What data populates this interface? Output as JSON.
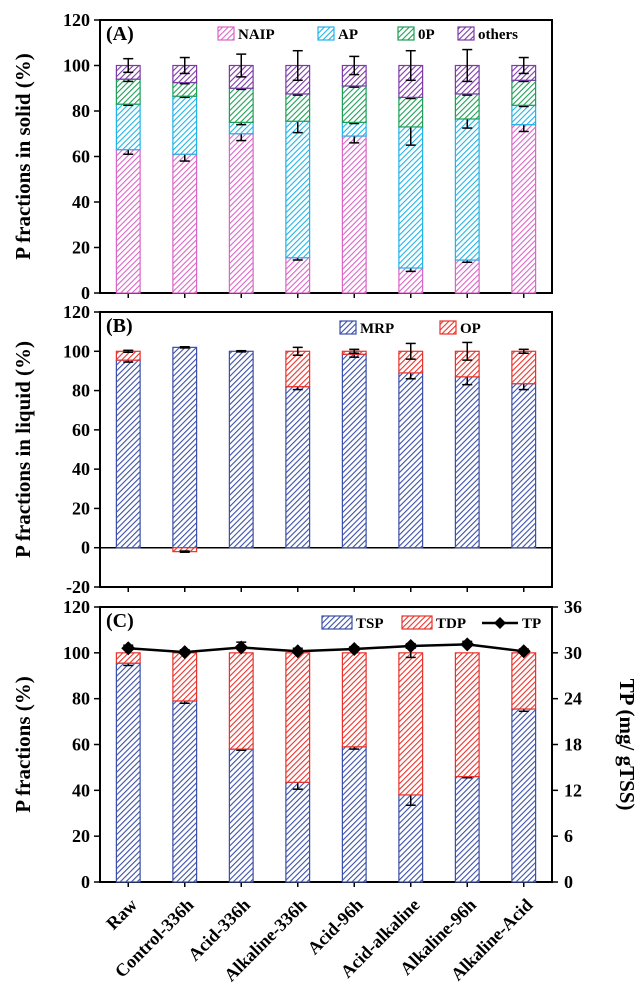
{
  "categories": [
    "Raw",
    "Control-336h",
    "Acid-336h",
    "Alkaline-336h",
    "Acid-96h",
    "Acid-alkaline",
    "Alkaline-96h",
    "Alkaline-Acid"
  ],
  "chart_data": [
    {
      "panel": "(A)",
      "type": "stacked-bar",
      "ylabel": "P fractions in solid (%)",
      "ylim": [
        0,
        120
      ],
      "yticks": [
        0,
        20,
        40,
        60,
        80,
        100,
        120
      ],
      "legend_position": "top",
      "series": [
        {
          "name": "NAIP",
          "color": "#d966c6",
          "values": [
            63,
            61,
            70,
            15.5,
            69,
            11,
            14.5,
            74
          ],
          "errors": [
            2,
            3,
            3,
            1,
            3,
            1.5,
            1,
            3
          ]
        },
        {
          "name": "AP",
          "color": "#22b3e6",
          "values": [
            20,
            25.5,
            5,
            60,
            6,
            62,
            62,
            8.5
          ],
          "errors": [
            0.5,
            0.5,
            1,
            5,
            0.5,
            8,
            4,
            0.5
          ]
        },
        {
          "name": "0P",
          "color": "#1e9e58",
          "values": [
            11,
            6,
            15,
            12,
            16,
            13,
            11,
            11
          ],
          "errors": [
            1,
            0.5,
            0.5,
            0.5,
            0.5,
            0.5,
            0.5,
            0.5
          ]
        },
        {
          "name": "others",
          "color": "#7b3aa8",
          "values": [
            6,
            7.5,
            10,
            12.5,
            9,
            14,
            12.5,
            6.5
          ],
          "errors": [
            3,
            3.5,
            5,
            6.5,
            4,
            6.5,
            7,
            3.5
          ]
        }
      ]
    },
    {
      "panel": "(B)",
      "type": "stacked-bar",
      "ylabel": "P fractions in liquid (%)",
      "ylim": [
        -20,
        120
      ],
      "yticks": [
        -20,
        0,
        20,
        40,
        60,
        80,
        100,
        120
      ],
      "legend_position": "top",
      "series": [
        {
          "name": "MRP",
          "color": "#3b4fa8",
          "values": [
            95.5,
            102,
            100,
            82,
            98.5,
            89,
            87,
            83.5
          ],
          "errors": [
            1,
            0.3,
            0.3,
            1.5,
            1.5,
            3,
            4,
            3
          ]
        },
        {
          "name": "OP",
          "color": "#e8322c",
          "values": [
            4.5,
            -2,
            0,
            18,
            1.5,
            11,
            13,
            16.5
          ],
          "errors": [
            0.5,
            0.3,
            0,
            2,
            1,
            4,
            4.5,
            1
          ]
        }
      ]
    },
    {
      "panel": "(C)",
      "type": "stacked-bar+line",
      "ylabel": "P fractions (%)",
      "y2label": "TP (mg/ gTSS)",
      "ylim": [
        0,
        120
      ],
      "yticks": [
        0,
        20,
        40,
        60,
        80,
        100,
        120
      ],
      "y2lim": [
        0,
        36
      ],
      "y2ticks": [
        0,
        6,
        12,
        18,
        24,
        30,
        36
      ],
      "legend_position": "top-right",
      "series": [
        {
          "name": "TSP",
          "color": "#3b4fa8",
          "values": [
            95.5,
            79,
            58,
            43.5,
            59,
            38,
            46,
            75.5
          ],
          "errors": [
            1,
            1,
            0.5,
            3,
            1,
            4.5,
            0.5,
            1
          ]
        },
        {
          "name": "TDP",
          "color": "#e8322c",
          "values": [
            4.5,
            21,
            42,
            56.5,
            41,
            62,
            54,
            24.5
          ],
          "errors": [
            0,
            0,
            0,
            0,
            0,
            2,
            0,
            0
          ]
        }
      ],
      "line": {
        "name": "TP",
        "color": "#000000",
        "values": [
          30.6,
          30.1,
          30.7,
          30.2,
          30.5,
          30.9,
          31.1,
          30.2
        ],
        "errors": [
          0.4,
          0.3,
          0.7,
          0.4,
          0.3,
          0.3,
          0.4,
          0.3
        ]
      }
    }
  ]
}
